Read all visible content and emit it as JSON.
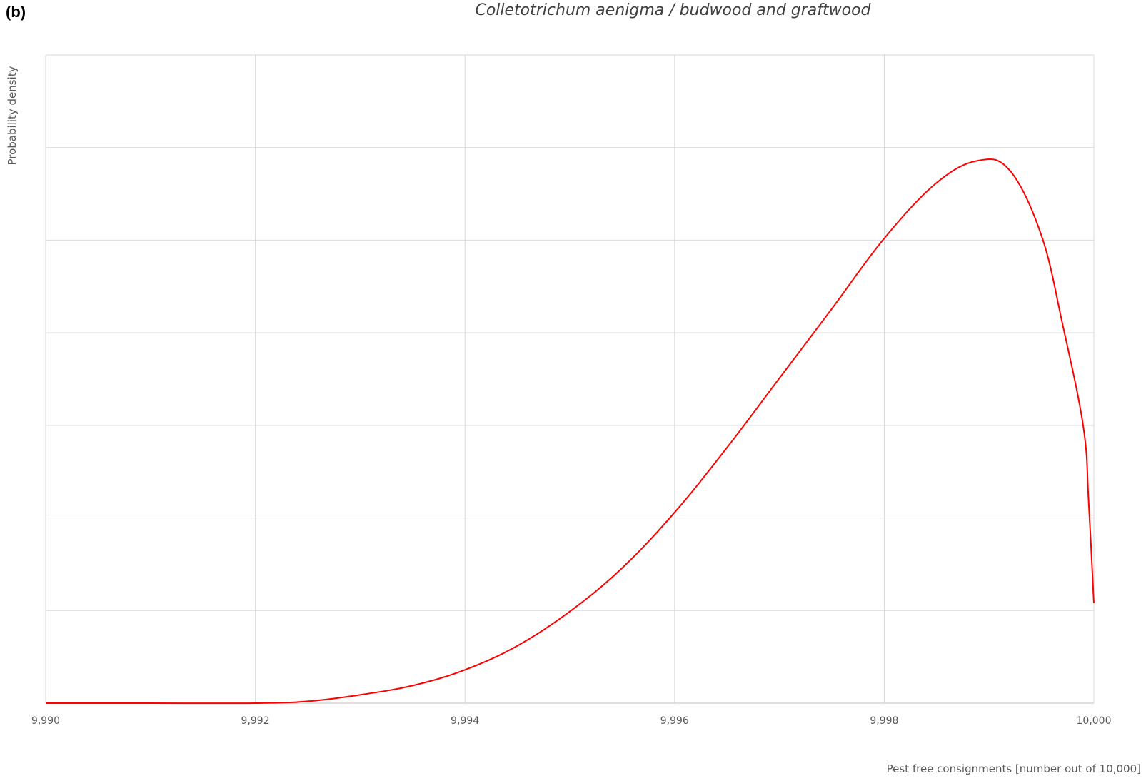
{
  "panel_label": "(b)",
  "chart_data": {
    "type": "line",
    "title": "Colletotrichum aenigma / budwood and graftwood",
    "xlabel": "Pest free consignments [number out of 10,000]",
    "ylabel": "Probability density",
    "xlim": [
      9990,
      10000
    ],
    "x_ticks": [
      "9,990",
      "9,992",
      "9,994",
      "9,996",
      "9,998",
      "10,000"
    ],
    "x_tick_values": [
      9990,
      9992,
      9994,
      9996,
      9998,
      10000
    ],
    "ylim": [
      0,
      7
    ],
    "y_grid_values": [
      1,
      2,
      3,
      4,
      5,
      6,
      7
    ],
    "y_tick_labels_shown": false,
    "grid": true,
    "series": [
      {
        "color": "#ff0000",
        "x": [
          9990,
          9991,
          9992,
          9992.5,
          9993,
          9993.5,
          9994,
          9994.5,
          9995,
          9995.5,
          9996,
          9996.5,
          9997,
          9997.5,
          9998,
          9998.5,
          9998.9,
          9999.2,
          9999.5,
          9999.7,
          9999.9,
          9999.95,
          10000
        ],
        "y": [
          0,
          0,
          0.0,
          0.02,
          0.09,
          0.19,
          0.36,
          0.62,
          0.99,
          1.46,
          2.06,
          2.76,
          3.51,
          4.26,
          5.02,
          5.62,
          5.86,
          5.75,
          5.05,
          4.1,
          2.98,
          2.18,
          1.08
        ]
      }
    ]
  }
}
